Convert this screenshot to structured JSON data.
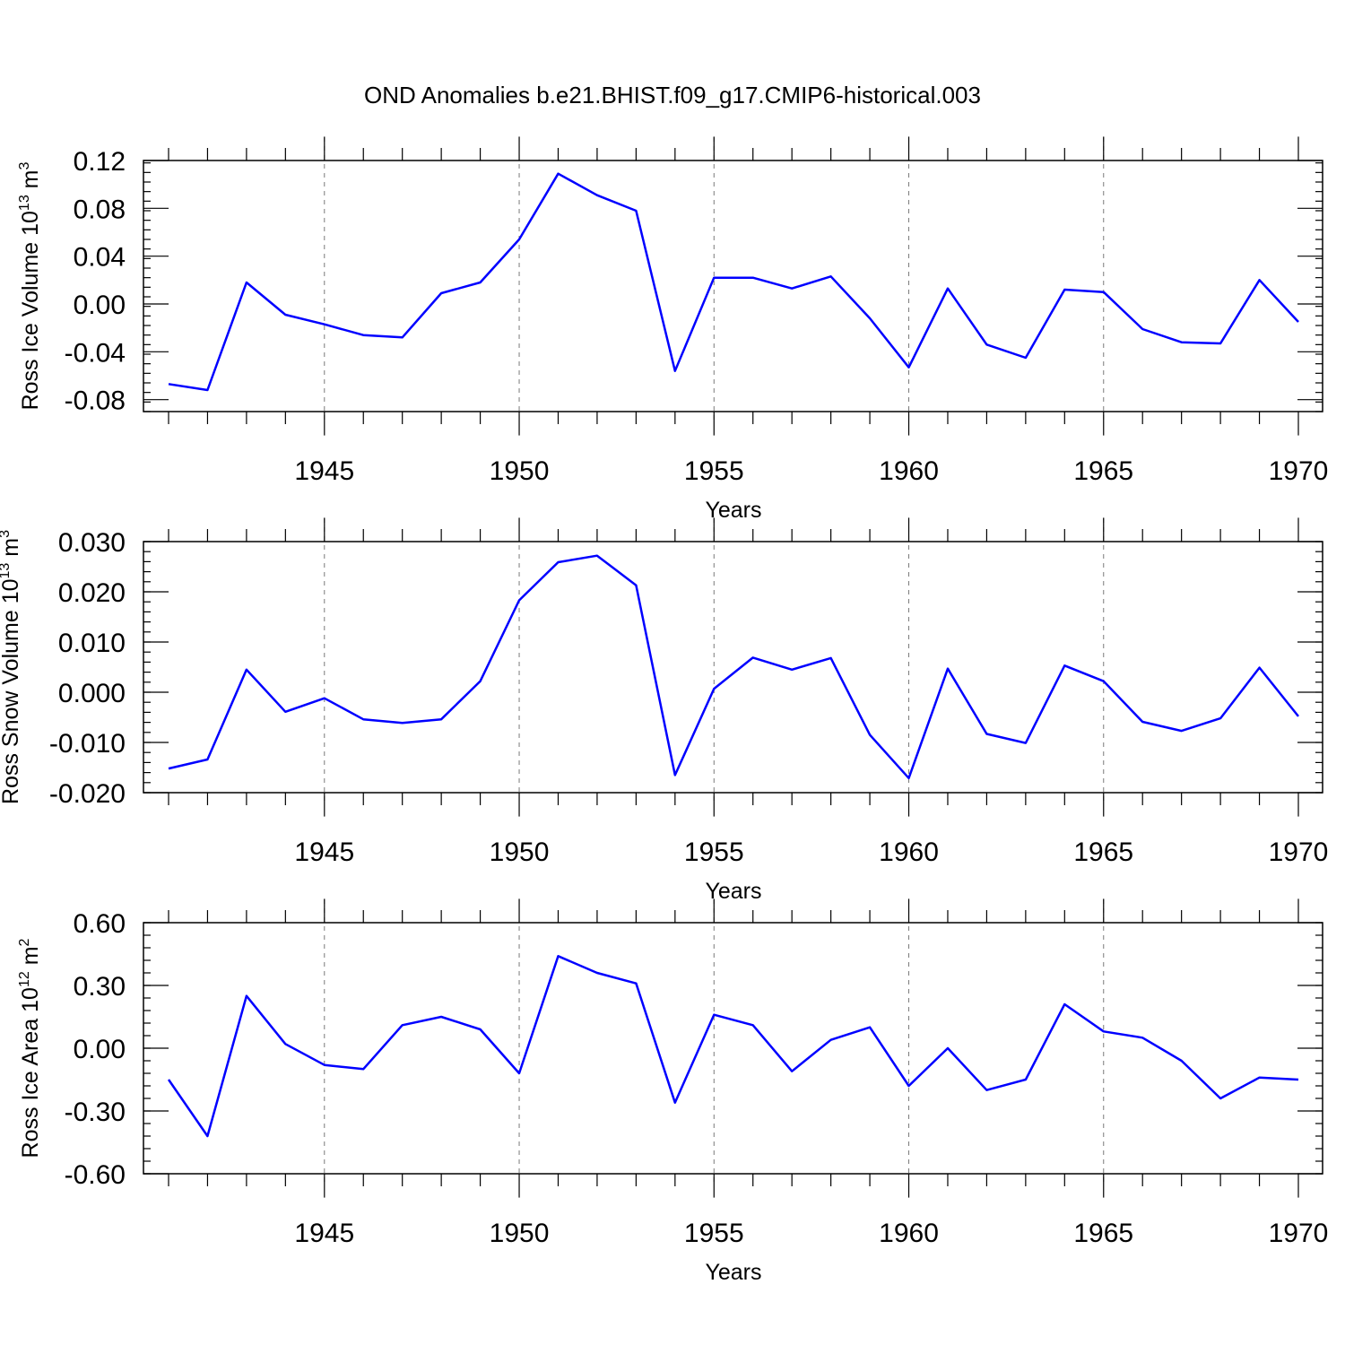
{
  "title": "OND Anomalies b.e21.BHIST.f09_g17.CMIP6-historical.003",
  "colors": {
    "series": "#0000ff",
    "axes": "#000000",
    "grid": "#7a7a7a"
  },
  "chart_data": [
    {
      "type": "line",
      "name": "ross-ice-volume",
      "ylabel_main": "Ross Ice Volume 10",
      "ylabel_sup": "13",
      "ylabel_tail": " m",
      "ylabel_unit_sup": "3",
      "xlabel": "Years",
      "xlim": [
        1941,
        1970
      ],
      "ylim": [
        -0.09,
        0.12
      ],
      "yticks": [
        -0.08,
        -0.04,
        0.0,
        0.04,
        0.08,
        0.12
      ],
      "ytick_labels": [
        "-0.08",
        "-0.04",
        "0.00",
        "0.04",
        "0.08",
        "0.12"
      ],
      "xticks": [
        1945,
        1950,
        1955,
        1960,
        1965,
        1970
      ],
      "xtick_labels": [
        "1945",
        "1950",
        "1955",
        "1960",
        "1965",
        "1970"
      ],
      "x": [
        1941,
        1942,
        1943,
        1944,
        1945,
        1946,
        1947,
        1948,
        1949,
        1950,
        1951,
        1952,
        1953,
        1954,
        1955,
        1956,
        1957,
        1958,
        1959,
        1960,
        1961,
        1962,
        1963,
        1964,
        1965,
        1966,
        1967,
        1968,
        1969,
        1970
      ],
      "series": [
        {
          "name": "Ross Ice Volume",
          "values": [
            -0.067,
            -0.072,
            0.018,
            -0.009,
            -0.017,
            -0.026,
            -0.028,
            0.009,
            0.018,
            0.054,
            0.109,
            0.091,
            0.078,
            -0.056,
            0.022,
            0.022,
            0.013,
            0.023,
            -0.012,
            -0.053,
            0.013,
            -0.034,
            -0.045,
            0.012,
            0.01,
            -0.021,
            -0.032,
            -0.033,
            0.02,
            -0.015
          ]
        }
      ]
    },
    {
      "type": "line",
      "name": "ross-snow-volume",
      "ylabel_main": "Ross Snow Volume 10",
      "ylabel_sup": "13",
      "ylabel_tail": " m",
      "ylabel_unit_sup": "3",
      "xlabel": "Years",
      "xlim": [
        1941,
        1970
      ],
      "ylim": [
        -0.02,
        0.03
      ],
      "yticks": [
        -0.02,
        -0.01,
        0.0,
        0.01,
        0.02,
        0.03
      ],
      "ytick_labels": [
        "-0.020",
        "-0.010",
        "0.000",
        "0.010",
        "0.020",
        "0.030"
      ],
      "xticks": [
        1945,
        1950,
        1955,
        1960,
        1965,
        1970
      ],
      "xtick_labels": [
        "1945",
        "1950",
        "1955",
        "1960",
        "1965",
        "1970"
      ],
      "x": [
        1941,
        1942,
        1943,
        1944,
        1945,
        1946,
        1947,
        1948,
        1949,
        1950,
        1951,
        1952,
        1953,
        1954,
        1955,
        1956,
        1957,
        1958,
        1959,
        1960,
        1961,
        1962,
        1963,
        1964,
        1965,
        1966,
        1967,
        1968,
        1969,
        1970
      ],
      "series": [
        {
          "name": "Ross Snow Volume",
          "values": [
            -0.0152,
            -0.0134,
            0.0045,
            -0.0039,
            -0.0012,
            -0.0054,
            -0.0061,
            -0.0054,
            0.0022,
            0.0183,
            0.0259,
            0.0272,
            0.0213,
            -0.0165,
            0.0007,
            0.0069,
            0.0045,
            0.0068,
            -0.0085,
            -0.0171,
            0.0047,
            -0.0083,
            -0.0101,
            0.0053,
            0.0022,
            -0.0059,
            -0.0077,
            -0.0052,
            0.0049,
            -0.0048
          ]
        }
      ]
    },
    {
      "type": "line",
      "name": "ross-ice-area",
      "ylabel_main": "Ross Ice Area 10",
      "ylabel_sup": "12",
      "ylabel_tail": " m",
      "ylabel_unit_sup": "2",
      "xlabel": "Years",
      "xlim": [
        1941,
        1970
      ],
      "ylim": [
        -0.6,
        0.6
      ],
      "yticks": [
        -0.6,
        -0.3,
        0.0,
        0.3,
        0.6
      ],
      "ytick_labels": [
        "-0.60",
        "-0.30",
        "0.00",
        "0.30",
        "0.60"
      ],
      "xticks": [
        1945,
        1950,
        1955,
        1960,
        1965,
        1970
      ],
      "xtick_labels": [
        "1945",
        "1950",
        "1955",
        "1960",
        "1965",
        "1970"
      ],
      "x": [
        1941,
        1942,
        1943,
        1944,
        1945,
        1946,
        1947,
        1948,
        1949,
        1950,
        1951,
        1952,
        1953,
        1954,
        1955,
        1956,
        1957,
        1958,
        1959,
        1960,
        1961,
        1962,
        1963,
        1964,
        1965,
        1966,
        1967,
        1968,
        1969,
        1970
      ],
      "series": [
        {
          "name": "Ross Ice Area",
          "values": [
            -0.15,
            -0.42,
            0.25,
            0.02,
            -0.08,
            -0.1,
            0.11,
            0.15,
            0.09,
            -0.12,
            0.44,
            0.36,
            0.31,
            -0.26,
            0.16,
            0.11,
            -0.11,
            0.04,
            0.1,
            -0.18,
            0.0,
            -0.2,
            -0.15,
            0.21,
            0.08,
            0.05,
            -0.06,
            -0.24,
            -0.14,
            -0.15
          ]
        }
      ]
    }
  ]
}
